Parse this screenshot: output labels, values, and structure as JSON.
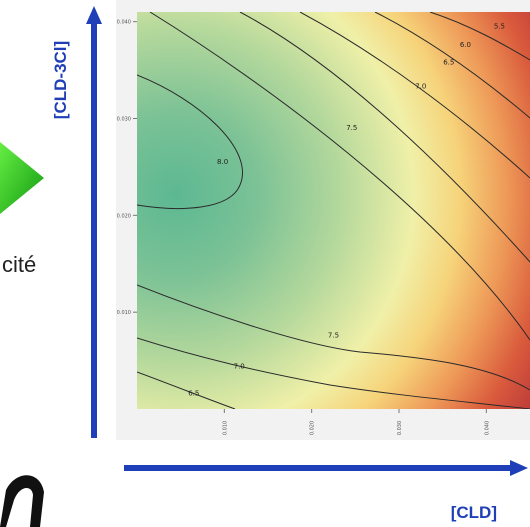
{
  "side_text": "cité",
  "chart_data": {
    "type": "contour",
    "xlabel": "[CLD]",
    "ylabel": "[CLD-3Cl]",
    "xlim": [
      0.0,
      0.045
    ],
    "ylim": [
      0.0,
      0.041
    ],
    "x_ticks": [
      "0.010",
      "0.020",
      "0.030",
      "0.040"
    ],
    "y_ticks": [
      "0.010",
      "0.020",
      "0.030",
      "0.040"
    ],
    "contour_labels": [
      {
        "text": "5.5",
        "x": 0.0415,
        "y": 0.0393
      },
      {
        "text": "6.0",
        "x": 0.0376,
        "y": 0.0374
      },
      {
        "text": "6.5",
        "x": 0.0357,
        "y": 0.0356
      },
      {
        "text": "7.0",
        "x": 0.0325,
        "y": 0.0331
      },
      {
        "text": "7.5",
        "x": 0.0246,
        "y": 0.0288
      },
      {
        "text": "8.0",
        "x": 0.0098,
        "y": 0.0253
      },
      {
        "text": "7.5",
        "x": 0.0225,
        "y": 0.0074
      },
      {
        "text": "7.0",
        "x": 0.0117,
        "y": 0.0042
      },
      {
        "text": "6.5",
        "x": 0.0065,
        "y": 0.0014
      }
    ],
    "grid": false,
    "colormap": "terrain: red (low) -> yellow -> green (high)"
  },
  "colors": {
    "axis_arrow": "#1f3fb8",
    "pointer_green": "#22cc22",
    "low": "#c8403a",
    "mid": "#f2f0a8",
    "high": "#5cb892"
  }
}
